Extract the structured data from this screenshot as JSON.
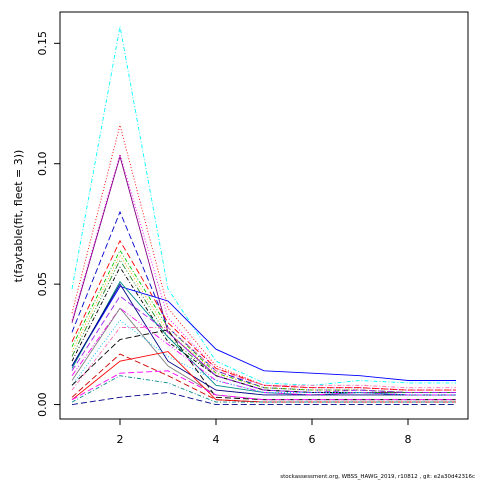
{
  "chart_data": {
    "type": "line",
    "title": "",
    "xlabel": "",
    "ylabel": "t(faytable(fit, fleet = 3))",
    "xlim": [
      0.75,
      9.25
    ],
    "ylim": [
      -0.006,
      0.163
    ],
    "x": [
      1,
      2,
      3,
      4,
      5,
      6,
      7,
      8,
      9
    ],
    "xticks": [
      2,
      4,
      6,
      8
    ],
    "xtick_labels": [
      "2",
      "4",
      "6",
      "8"
    ],
    "yticks": [
      0.0,
      0.05,
      0.1,
      0.15
    ],
    "ytick_labels": [
      "0.00",
      "0.05",
      "0.10",
      "0.15"
    ],
    "grid": false,
    "legend": "none",
    "series": [
      {
        "color": "#00ffff",
        "dash": "4,2,1,2",
        "values": [
          0.048,
          0.157,
          0.048,
          0.018,
          0.009,
          0.008,
          0.01,
          0.009,
          0.009
        ]
      },
      {
        "color": "#ff0000",
        "dash": "1,2",
        "values": [
          0.038,
          0.116,
          0.04,
          0.016,
          0.008,
          0.007,
          0.007,
          0.006,
          0.006
        ]
      },
      {
        "color": "#ff00ff",
        "dash": "1,2",
        "values": [
          0.035,
          0.104,
          0.036,
          0.015,
          0.008,
          0.007,
          0.007,
          0.006,
          0.006
        ]
      },
      {
        "color": "#800080",
        "dash": "",
        "values": [
          0.034,
          0.103,
          0.03,
          0.012,
          0.006,
          0.005,
          0.005,
          0.005,
          0.005
        ]
      },
      {
        "color": "#0000cd",
        "dash": "6,3",
        "values": [
          0.03,
          0.08,
          0.032,
          0.014,
          0.007,
          0.006,
          0.006,
          0.005,
          0.005
        ]
      },
      {
        "color": "#ff0000",
        "dash": "6,3",
        "values": [
          0.026,
          0.068,
          0.034,
          0.015,
          0.008,
          0.007,
          0.007,
          0.006,
          0.006
        ]
      },
      {
        "color": "#00cd00",
        "dash": "4,2,1,2",
        "values": [
          0.024,
          0.064,
          0.032,
          0.013,
          0.007,
          0.006,
          0.006,
          0.005,
          0.005
        ]
      },
      {
        "color": "#ffa500",
        "dash": "1,2",
        "values": [
          0.022,
          0.062,
          0.03,
          0.013,
          0.007,
          0.006,
          0.006,
          0.005,
          0.005
        ]
      },
      {
        "color": "#228b22",
        "dash": "6,2,1,2,1,2",
        "values": [
          0.02,
          0.06,
          0.028,
          0.012,
          0.006,
          0.005,
          0.005,
          0.005,
          0.005
        ]
      },
      {
        "color": "#000000",
        "dash": "4,2,1,2",
        "values": [
          0.018,
          0.057,
          0.026,
          0.012,
          0.006,
          0.005,
          0.005,
          0.004,
          0.004
        ]
      },
      {
        "color": "#0000ff",
        "dash": "",
        "values": [
          0.016,
          0.049,
          0.043,
          0.023,
          0.014,
          0.013,
          0.012,
          0.01,
          0.01
        ]
      },
      {
        "color": "#008b8b",
        "dash": "",
        "values": [
          0.015,
          0.051,
          0.028,
          0.008,
          0.005,
          0.004,
          0.005,
          0.004,
          0.004
        ]
      },
      {
        "color": "#000080",
        "dash": "",
        "values": [
          0.016,
          0.05,
          0.018,
          0.006,
          0.004,
          0.004,
          0.004,
          0.004,
          0.004
        ]
      },
      {
        "color": "#a020f0",
        "dash": "6,3",
        "values": [
          0.014,
          0.045,
          0.03,
          0.012,
          0.006,
          0.005,
          0.006,
          0.005,
          0.005
        ]
      },
      {
        "color": "#ff00ff",
        "dash": "6,2,1,2,1,2",
        "values": [
          0.012,
          0.04,
          0.025,
          0.01,
          0.005,
          0.004,
          0.005,
          0.004,
          0.004
        ]
      },
      {
        "color": "#808080",
        "dash": "",
        "values": [
          0.01,
          0.04,
          0.016,
          0.004,
          0.002,
          0.002,
          0.002,
          0.002,
          0.002
        ]
      },
      {
        "color": "#ff69b4",
        "dash": "4,2,1,2",
        "values": [
          0.006,
          0.032,
          0.032,
          0.014,
          0.008,
          0.008,
          0.008,
          0.007,
          0.007
        ]
      },
      {
        "color": "#00bfff",
        "dash": "1,2",
        "values": [
          0.008,
          0.035,
          0.02,
          0.01,
          0.005,
          0.005,
          0.005,
          0.004,
          0.004
        ]
      },
      {
        "color": "#000000",
        "dash": "6,3",
        "values": [
          0.008,
          0.027,
          0.031,
          0.003,
          0.002,
          0.002,
          0.002,
          0.002,
          0.002
        ]
      },
      {
        "color": "#ff0000",
        "dash": "",
        "values": [
          0.002,
          0.018,
          0.022,
          0.002,
          0.001,
          0.001,
          0.001,
          0.001,
          0.001
        ]
      },
      {
        "color": "#cd0000",
        "dash": "6,3",
        "values": [
          0.003,
          0.021,
          0.012,
          0.002,
          0.001,
          0.001,
          0.001,
          0.001,
          0.001
        ]
      },
      {
        "color": "#ff00ff",
        "dash": "6,3",
        "values": [
          0.002,
          0.013,
          0.014,
          0.004,
          0.002,
          0.002,
          0.002,
          0.002,
          0.002
        ]
      },
      {
        "color": "#008b8b",
        "dash": "4,2,1,2",
        "values": [
          0.001,
          0.012,
          0.009,
          0.001,
          0.001,
          0.001,
          0.001,
          0.001,
          0.001
        ]
      },
      {
        "color": "#00008b",
        "dash": "6,3",
        "values": [
          0.0,
          0.003,
          0.005,
          0.0,
          0.0,
          0.0,
          0.0,
          0.0,
          0.0
        ]
      }
    ]
  },
  "footer": "stockassessment.org, WBSS_HAWG_2019, r10812 , git: e2a30d42316c"
}
